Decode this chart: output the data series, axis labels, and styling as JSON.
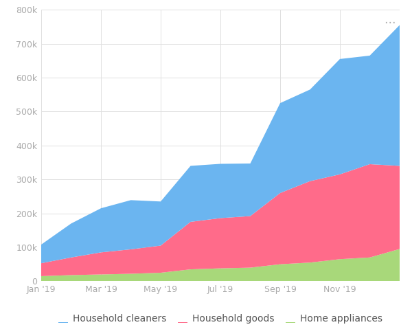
{
  "background_color": "#ffffff",
  "plot_bg_color": "#ffffff",
  "grid_color": "#e0e0e0",
  "x_labels": [
    "Jan '19",
    "Mar '19",
    "May '19",
    "Jul '19",
    "Sep '19",
    "Nov '19"
  ],
  "ylim": [
    0,
    800000
  ],
  "yticks": [
    0,
    100000,
    200000,
    300000,
    400000,
    500000,
    600000,
    700000,
    800000
  ],
  "series": {
    "home_appliances": {
      "label": "Home appliances",
      "color": "#a8d87a",
      "values": [
        15000,
        18000,
        20000,
        22000,
        25000,
        35000,
        38000,
        40000,
        50000,
        55000,
        65000,
        70000,
        95000
      ]
    },
    "household_goods": {
      "label": "Household goods",
      "color": "#ff6b8a",
      "values": [
        38000,
        52000,
        65000,
        72000,
        80000,
        140000,
        148000,
        152000,
        210000,
        240000,
        250000,
        275000,
        245000
      ]
    },
    "household_cleaners": {
      "label": "Household cleaners",
      "color": "#6bb5f0",
      "values": [
        55000,
        100000,
        130000,
        145000,
        130000,
        165000,
        160000,
        155000,
        265000,
        270000,
        340000,
        320000,
        415000
      ]
    }
  },
  "n_points": 13,
  "x_tick_indices": [
    0,
    2,
    4,
    6,
    8,
    10
  ],
  "dots_color": "#aaaaaa",
  "legend_fontsize": 10
}
